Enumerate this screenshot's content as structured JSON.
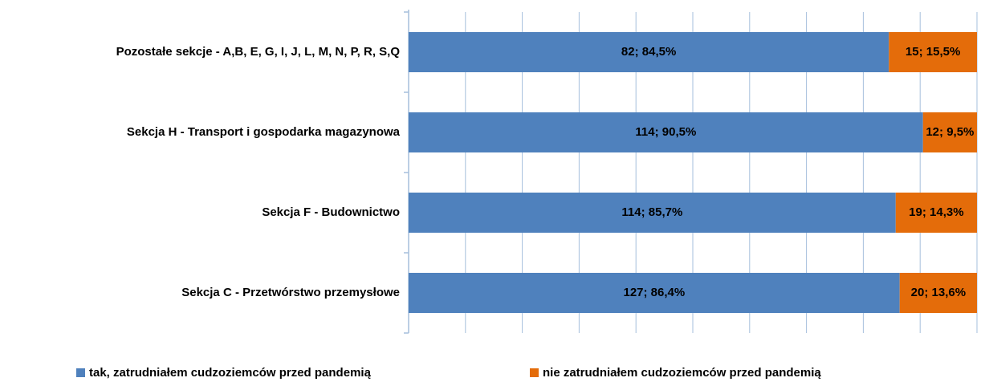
{
  "chart_data": {
    "type": "stacked-barh",
    "categories": [
      "Pozostałe sekcje - A,B, E, G, I, J, L, M, N, P, R, S,Q",
      "Sekcja H - Transport i gospodarka magazynowa",
      "Sekcja F - Budownictwo",
      "Sekcja C - Przetwórstwo przemysłowe"
    ],
    "series": [
      {
        "name": "tak, zatrudniałem cudzoziemców przed pandemią",
        "color": "#4f81bd",
        "values": [
          84.5,
          90.5,
          85.7,
          86.4
        ],
        "value_labels": [
          "82; 84,5%",
          "114; 90,5%",
          "114; 85,7%",
          "127; 86,4%"
        ]
      },
      {
        "name": "nie zatrudniałem cudzoziemców przed pandemią",
        "color": "#e46c0a",
        "values": [
          15.5,
          9.5,
          14.3,
          13.6
        ],
        "value_labels": [
          "15; 15,5%",
          "12; 9,5%",
          "19; 14,3%",
          "20; 13,6%"
        ]
      }
    ],
    "xlim": [
      0,
      100
    ],
    "xticks": [
      0,
      10,
      20,
      30,
      40,
      50,
      60,
      70,
      80,
      90,
      100
    ],
    "grid": true,
    "legend": "bottom"
  }
}
